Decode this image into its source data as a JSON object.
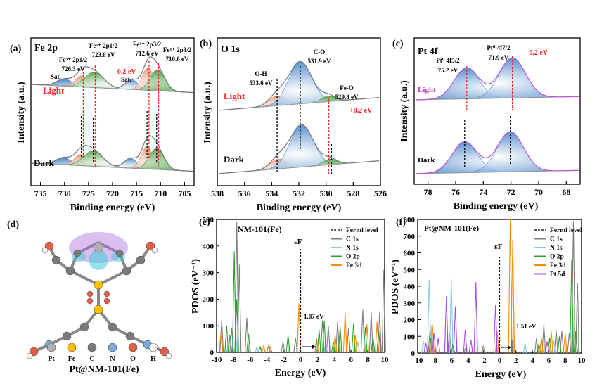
{
  "panels": {
    "a": {
      "letter": "(a)",
      "title": "Fe 2p",
      "xlabel": "Binding energy (eV)",
      "ylabel": "Intensity (a.u.)",
      "xticks": [
        "735",
        "730",
        "725",
        "720",
        "715",
        "710",
        "705"
      ],
      "peaks": [
        {
          "label": "Fe³⁺ 2p1/2",
          "value": "726.3 eV"
        },
        {
          "label": "Fe²⁺ 2p1/2",
          "value": "723.8 eV"
        },
        {
          "label": "Fe³⁺ 2p3/2",
          "value": "712.6 eV"
        },
        {
          "label": "Fe²⁺ 2p3/2",
          "value": "710.6 eV"
        }
      ],
      "sat1": "Sat.",
      "sat2": "Sat.",
      "light": "Light",
      "dark": "Dark",
      "shift": "- 0.2 eV"
    },
    "b": {
      "letter": "(b)",
      "title": "O 1s",
      "xlabel": "Binding energy (eV)",
      "ylabel": "Intensity (a.u.)",
      "xticks": [
        "538",
        "536",
        "534",
        "532",
        "530",
        "528",
        "526"
      ],
      "peaks": [
        {
          "label": "O-H",
          "value": "533.6 eV"
        },
        {
          "label": "C-O",
          "value": "531.9 eV"
        },
        {
          "label": "Fe-O",
          "value": "529.8 eV"
        }
      ],
      "light": "Light",
      "dark": "Dark",
      "shift": "+0.2 eV"
    },
    "c": {
      "letter": "(c)",
      "title": "Pt 4f",
      "xlabel": "Binding energy (eV)",
      "ylabel": "Intensity (a.u.)",
      "xticks": [
        "78",
        "76",
        "74",
        "72",
        "70",
        "68"
      ],
      "peaks": [
        {
          "label": "Pt⁰ 4f5/2",
          "value": "75.2 eV"
        },
        {
          "label": "Pt⁰ 4f7/2",
          "value": "71.9 eV"
        }
      ],
      "light": "Light",
      "dark": "Dark",
      "shift": "-0.2 eV"
    },
    "d": {
      "letter": "(d)",
      "caption": "Pt@NM-101(Fe)",
      "legend": [
        "Pt",
        "Fe",
        "C",
        "N",
        "O",
        "H"
      ]
    },
    "e": {
      "letter": "(e)",
      "title": "NM-101(Fe)",
      "ylabel": "PDOS (eV⁻¹)",
      "xlabel": "Energy (eV)",
      "xticks": [
        "-10",
        "-8",
        "-6",
        "-4",
        "-2",
        "0",
        "2",
        "4",
        "6",
        "8",
        "10"
      ],
      "yticks": [
        "0",
        "100",
        "200",
        "300",
        "400",
        "500"
      ],
      "ef": "εF",
      "gap": "1.87 eV",
      "legend": [
        "Fermi level",
        "C 1s",
        "N 1s",
        "O 2p",
        "Fe 3d"
      ]
    },
    "f": {
      "letter": "(f)",
      "title": "Pt@NM-101(Fe)",
      "ylabel": "PDOS (eV⁻¹)",
      "xlabel": "Energy (eV)",
      "xticks": [
        "-10",
        "-8",
        "-6",
        "-4",
        "-2",
        "0",
        "2",
        "4",
        "6",
        "8",
        "10"
      ],
      "yticks": [
        "0",
        "100",
        "200",
        "300",
        "400",
        "500",
        "600",
        "700",
        "800"
      ],
      "ef": "εF",
      "gap": "1.51 eV",
      "legend": [
        "Fermi level",
        "C 1s",
        "N 1s",
        "O 2p",
        "Fe 3d",
        "Pt 5d"
      ]
    }
  },
  "colors": {
    "C": "#7f7f7f",
    "N": "#87c9e6",
    "O": "#2ca02c",
    "Fe": "#ff8c00",
    "Pt": "#a64ce6",
    "envelope": "#c04fd3",
    "green": "#3a9a3a",
    "blue": "#3f7fc6",
    "salmon": "#e9896a",
    "red": "#ff2020"
  },
  "chart_data": [
    {
      "type": "line",
      "title": "Fe 2p",
      "xlabel": "Binding energy (eV)",
      "ylabel": "Intensity (a.u.)",
      "xlim": [
        737,
        703
      ],
      "series": [
        {
          "name": "Light",
          "peaks_eV": [
            726.3,
            723.8,
            712.6,
            710.6
          ]
        },
        {
          "name": "Dark",
          "peaks_eV": [
            726.5,
            724.0,
            712.8,
            710.8
          ]
        }
      ]
    },
    {
      "type": "line",
      "title": "O 1s",
      "xlabel": "Binding energy (eV)",
      "ylabel": "Intensity (a.u.)",
      "xlim": [
        538,
        526
      ],
      "series": [
        {
          "name": "Light",
          "peaks_eV": [
            533.6,
            531.9,
            529.8
          ]
        },
        {
          "name": "Dark",
          "peaks_eV": [
            533.6,
            531.9,
            529.6
          ]
        }
      ]
    },
    {
      "type": "line",
      "title": "Pt 4f",
      "xlabel": "Binding energy (eV)",
      "ylabel": "Intensity (a.u.)",
      "xlim": [
        79,
        67
      ],
      "series": [
        {
          "name": "Light",
          "peaks_eV": [
            75.2,
            71.9
          ]
        },
        {
          "name": "Dark",
          "peaks_eV": [
            75.4,
            72.1
          ]
        }
      ]
    },
    {
      "type": "bar",
      "title": "NM-101(Fe)",
      "xlabel": "Energy (eV)",
      "ylabel": "PDOS (eV⁻¹)",
      "xlim": [
        -10,
        10
      ],
      "ylim": [
        0,
        500
      ],
      "series": [
        {
          "name": "C 1s",
          "x": [
            -9.4,
            -8.2,
            -7.6,
            -7.3,
            -6.4,
            -3.8,
            -2.1,
            -0.6,
            2.6,
            3.3,
            4.4,
            5.7,
            7.4,
            8.4,
            9.4,
            9.9
          ],
          "y": [
            120,
            90,
            490,
            330,
            130,
            30,
            40,
            55,
            120,
            100,
            115,
            90,
            160,
            150,
            150,
            310
          ]
        },
        {
          "name": "N 1s",
          "x": [
            -8.9,
            -7.7,
            -5.2,
            3.0,
            6.8
          ],
          "y": [
            15,
            60,
            20,
            30,
            40
          ]
        },
        {
          "name": "O 2p",
          "x": [
            -8.8,
            -8.4,
            -7.9,
            -7.6,
            -6.2,
            -4.8,
            -1.5,
            2.2,
            2.8,
            3.9,
            4.7,
            6.3,
            7.7,
            8.6,
            9.3
          ],
          "y": [
            100,
            65,
            380,
            200,
            70,
            20,
            65,
            85,
            120,
            40,
            95,
            110,
            95,
            60,
            80
          ]
        },
        {
          "name": "Fe 3d",
          "x": [
            -9.5,
            -4.4,
            -3.6,
            -0.2,
            1.9,
            4.1,
            5.3,
            6.5,
            7.9,
            9.1
          ],
          "y": [
            70,
            25,
            20,
            185,
            55,
            65,
            150,
            65,
            105,
            115
          ]
        }
      ],
      "annotations": [
        "1.87 eV",
        "εF",
        "Fermi level"
      ]
    },
    {
      "type": "bar",
      "title": "Pt@NM-101(Fe)",
      "xlabel": "Energy (eV)",
      "ylabel": "PDOS (eV⁻¹)",
      "xlim": [
        -10,
        10
      ],
      "ylim": [
        0,
        800
      ],
      "series": [
        {
          "name": "C 1s",
          "x": [
            -8.5,
            -6.1,
            -2.0,
            4.5,
            5.4,
            6.9,
            7.6,
            8.5,
            9.0,
            9.5
          ],
          "y": [
            140,
            120,
            40,
            90,
            170,
            140,
            130,
            120,
            790,
            420
          ]
        },
        {
          "name": "N 1s",
          "x": [
            -9.3,
            -8.6,
            -8.3,
            -5.9,
            3.1,
            6.6
          ],
          "y": [
            70,
            440,
            165,
            440,
            60,
            80
          ]
        },
        {
          "name": "O 2p",
          "x": [
            -8.4,
            -5.7,
            -4.2,
            4.8,
            6.1,
            7.3,
            8.8,
            9.3
          ],
          "y": [
            90,
            50,
            25,
            55,
            90,
            100,
            560,
            130
          ]
        },
        {
          "name": "Fe 3d",
          "x": [
            -8.2,
            -0.3,
            1.3,
            1.6,
            5.1,
            6.3,
            8.0
          ],
          "y": [
            170,
            130,
            800,
            680,
            90,
            130,
            120
          ]
        },
        {
          "name": "Pt 5d",
          "x": [
            -9.0,
            -8.0,
            -7.5,
            -6.5,
            -5.4,
            -4.2,
            -3.5,
            -2.9,
            -0.5,
            5.8
          ],
          "y": [
            60,
            120,
            90,
            340,
            280,
            140,
            80,
            425,
            290,
            70
          ]
        }
      ],
      "annotations": [
        "1.51 eV",
        "εF",
        "Fermi level"
      ]
    }
  ]
}
